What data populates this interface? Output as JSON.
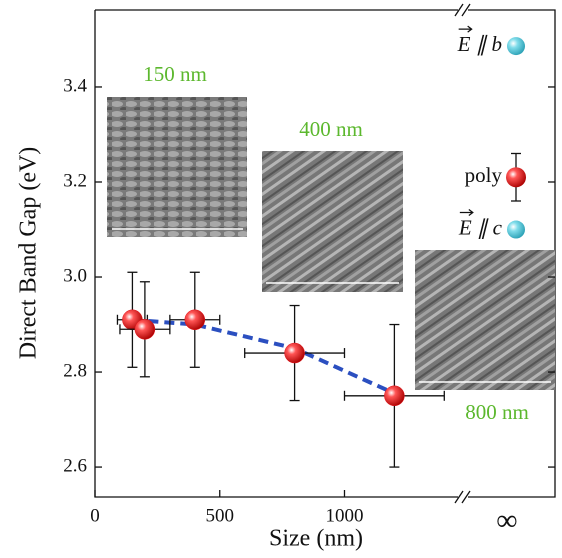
{
  "chart_data": {
    "type": "scatter",
    "x_label": "Size (nm)",
    "y_label": "Direct Band Gap (eV)",
    "xlim": [
      0,
      1475
    ],
    "ylim": [
      2.537,
      3.562
    ],
    "xticks": [
      0,
      500,
      1000
    ],
    "yticks": [
      2.6,
      2.8,
      {
        "value": 3,
        "label": "3.0"
      },
      3.2,
      3.4
    ],
    "x_inf_label": "∞",
    "series": [
      {
        "name": "poly",
        "color": "#e8141c",
        "x": [
          150,
          200,
          400,
          800,
          1200
        ],
        "values": [
          2.91,
          2.89,
          2.91,
          2.84,
          2.75
        ],
        "y_error": [
          0.1,
          0.1,
          0.1,
          0.1,
          0.15
        ],
        "x_error": [
          60,
          100,
          100,
          200,
          200
        ]
      }
    ],
    "fit": {
      "color": "#2b4fc0",
      "x": [
        150,
        400,
        800,
        1200
      ],
      "values": [
        2.91,
        2.9,
        2.85,
        2.755
      ]
    },
    "infinity_points": [
      {
        "name": "E ∥ b",
        "color": "#5bc8d8",
        "value": 3.486
      },
      {
        "name": "poly",
        "color": "#e8141c",
        "value": 3.21,
        "error": 0.05
      },
      {
        "name": "E ∥ c",
        "color": "#5bc8d8",
        "value": 3.1
      }
    ],
    "images": [
      {
        "label": "150 nm"
      },
      {
        "label": "400 nm"
      },
      {
        "label": "800 nm"
      }
    ]
  }
}
